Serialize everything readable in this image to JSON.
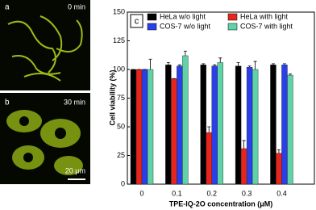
{
  "chart_data": {
    "type": "bar",
    "panel_label": "c",
    "xlabel": "TPE-IQ-2O concentration (μM)",
    "ylabel": "Cell viability (%)",
    "categories": [
      "0",
      "0.1",
      "0.2",
      "0.3",
      "0.4"
    ],
    "series": [
      {
        "name": "HeLa w/o light",
        "color": "#000000",
        "values": [
          100,
          104,
          104,
          103,
          104
        ],
        "errors": [
          0,
          2,
          1,
          3,
          1
        ]
      },
      {
        "name": "HeLa with light",
        "color": "#e8251c",
        "values": [
          100,
          92,
          45,
          31,
          27
        ],
        "errors": [
          0,
          0,
          5,
          7,
          3
        ]
      },
      {
        "name": "COS-7 w/o light",
        "color": "#2a3fe8",
        "values": [
          100,
          103,
          103,
          102,
          104
        ],
        "errors": [
          0,
          1,
          1,
          1,
          1
        ]
      },
      {
        "name": "COS-7 with light",
        "color": "#5fd2a8",
        "values": [
          100,
          112,
          106,
          100,
          95
        ],
        "errors": [
          9,
          4,
          4,
          7,
          1
        ]
      }
    ],
    "ylim": [
      0,
      150
    ],
    "yticks": [
      0,
      25,
      50,
      75,
      100,
      125,
      150
    ]
  },
  "images": [
    {
      "label": "a",
      "caption": "0 min"
    },
    {
      "label": "b",
      "caption": "30 min",
      "scale_bar": "20 μm"
    }
  ]
}
